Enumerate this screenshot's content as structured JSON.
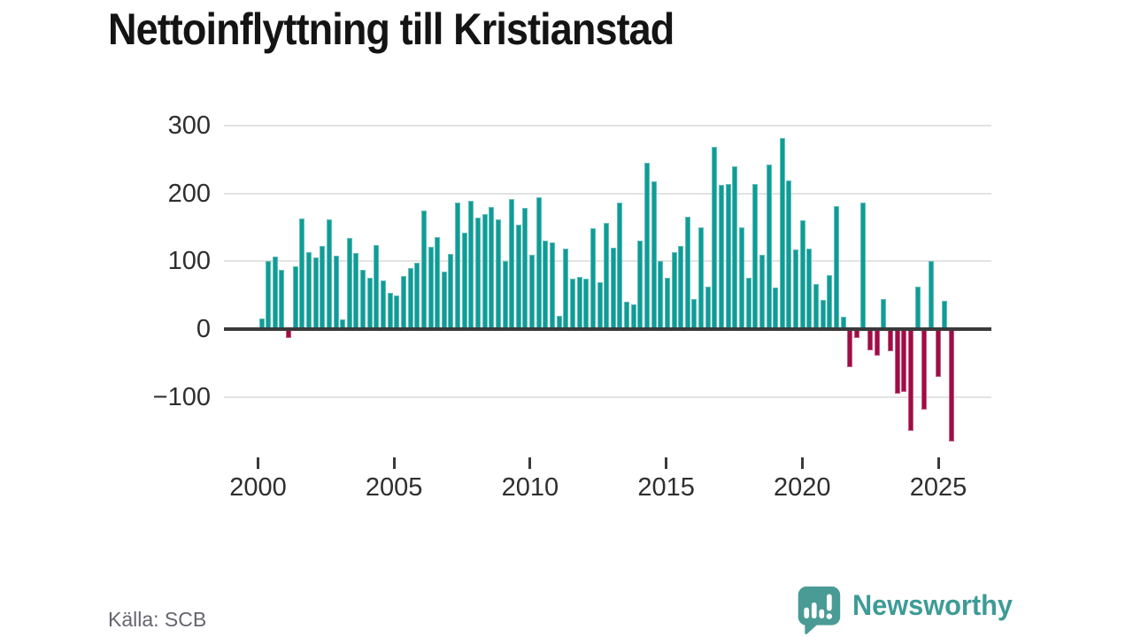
{
  "title": "Nettoinflyttning till Kristianstad",
  "source": "Källa: SCB",
  "brand": {
    "name": "Newsworthy",
    "icon": "speech-bubble-bar-chart-with-exclamation",
    "color": "#4a9b96"
  },
  "chart_data": {
    "type": "bar",
    "title": "Nettoinflyttning till Kristianstad",
    "frequency": "quarterly",
    "start_period": "2000 Q1",
    "end_period": "2025 Q3",
    "categories_note": "one bar per quarter from 2000 Q1 to 2025 Q3",
    "series": [
      {
        "name": "Nettoinflyttning",
        "values": [
          15,
          100,
          107,
          88,
          -13,
          92,
          163,
          113,
          106,
          122,
          162,
          108,
          14,
          134,
          112,
          88,
          75,
          124,
          72,
          53,
          50,
          78,
          90,
          98,
          175,
          121,
          136,
          85,
          111,
          186,
          142,
          189,
          164,
          169,
          180,
          162,
          101,
          192,
          154,
          178,
          109,
          194,
          131,
          128,
          20,
          119,
          74,
          77,
          74,
          149,
          69,
          156,
          120,
          186,
          41,
          36,
          131,
          245,
          218,
          101,
          75,
          114,
          122,
          166,
          44,
          150,
          62,
          268,
          212,
          214,
          240,
          150,
          76,
          214,
          110,
          242,
          61,
          281,
          219,
          117,
          161,
          119,
          67,
          43,
          80,
          181,
          18,
          -56,
          -13,
          187,
          -31,
          -39,
          44,
          -32,
          -95,
          -93,
          -150,
          63,
          -119,
          100,
          -71,
          42,
          -166
        ]
      }
    ],
    "yticks": [
      300,
      200,
      100,
      0,
      -100
    ],
    "ytick_labels": [
      "300",
      "200",
      "100",
      "0",
      "−100"
    ],
    "xtick_labels": [
      "2000",
      "2005",
      "2010",
      "2015",
      "2020",
      "2025"
    ],
    "ylim": [
      -195,
      320
    ],
    "grid": "horizontal",
    "legend": "none",
    "positive_color": "#0f9c96",
    "negative_color": "#a00c45",
    "axis_color": "#3a3a3a",
    "gridline_color": "#e3e3e3"
  }
}
